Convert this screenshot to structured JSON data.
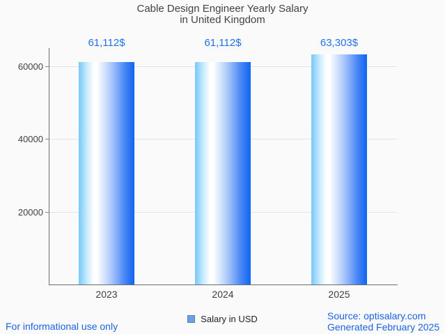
{
  "title": {
    "line1": "Cable Design Engineer Yearly Salary",
    "line2": "in United Kingdom"
  },
  "chart_data": {
    "type": "bar",
    "title": "Cable Design Engineer Yearly Salary in United Kingdom",
    "categories": [
      "2023",
      "2024",
      "2025"
    ],
    "series": [
      {
        "name": "Salary in USD",
        "values": [
          61112,
          61112,
          63303
        ]
      }
    ],
    "value_labels": [
      "61,112$",
      "61,112$",
      "63,303$"
    ],
    "yticks": [
      20000,
      40000,
      60000
    ],
    "ytick_labels": [
      "20000",
      "40000",
      "60000"
    ],
    "ylim": [
      0,
      64500
    ],
    "xlabel": "",
    "ylabel": "",
    "grid": true,
    "legend": "Salary in USD",
    "legend_position": "bottom"
  },
  "footer": {
    "disclaimer": "For informational use only",
    "source": "Source: optisalary.com",
    "generated": "Generated February 2025"
  },
  "colors": {
    "background": "#fafafa",
    "title_text": "#424242",
    "axis_text": "#404040",
    "axis_line": "#6e6e6e",
    "gridline": "#e3e3e3",
    "value_label_text": "#2170e8",
    "footer_text": "#1a63e0",
    "bar_gradient_left": "#76c8f8",
    "bar_gradient_mid": "#ffffff",
    "bar_gradient_right": "#0f64f2",
    "legend_marker_fill": "#64a2f5",
    "legend_marker_border": "#787878"
  }
}
